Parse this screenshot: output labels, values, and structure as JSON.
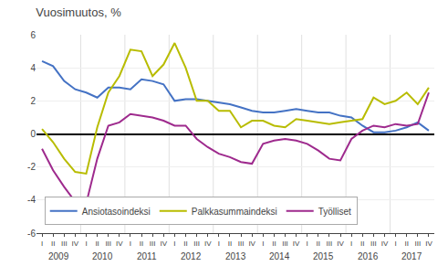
{
  "chart_data": {
    "type": "line",
    "title": "Vuosimuutos, %",
    "categories": [
      "I",
      "II",
      "III",
      "IV",
      "I",
      "II",
      "III",
      "IV",
      "I",
      "II",
      "III",
      "IV",
      "I",
      "II",
      "III",
      "IV",
      "I",
      "II",
      "III",
      "IV",
      "I",
      "II",
      "III",
      "IV",
      "I",
      "II",
      "III",
      "IV",
      "I",
      "II",
      "III",
      "IV",
      "I",
      "II",
      "III",
      "IV"
    ],
    "annotations": [
      "2009",
      "2010",
      "2011",
      "2012",
      "2013",
      "2014",
      "2015",
      "2016",
      "2017"
    ],
    "series": [
      {
        "name": "Ansiotasoindeksi",
        "color": "#4472c4",
        "values": [
          4.4,
          4.1,
          3.2,
          2.7,
          2.5,
          2.2,
          2.8,
          2.8,
          2.7,
          3.3,
          3.2,
          3.0,
          2.0,
          2.1,
          2.1,
          2.0,
          1.9,
          1.8,
          1.6,
          1.4,
          1.3,
          1.3,
          1.4,
          1.5,
          1.4,
          1.3,
          1.3,
          1.1,
          1.0,
          0.5,
          0.1,
          0.1,
          0.2,
          0.4,
          0.7,
          0.2
        ]
      },
      {
        "name": "Palkkasummaindeksi",
        "color": "#b8bc00",
        "values": [
          0.3,
          -0.5,
          -1.5,
          -2.3,
          -2.4,
          0.4,
          2.5,
          3.5,
          5.1,
          5.0,
          3.5,
          4.2,
          5.5,
          4.0,
          2.0,
          2.0,
          1.4,
          1.4,
          0.4,
          0.8,
          0.8,
          0.5,
          0.4,
          0.9,
          0.8,
          0.7,
          0.6,
          0.7,
          0.8,
          0.9,
          2.2,
          1.8,
          2.0,
          2.5,
          1.8,
          2.8
        ]
      },
      {
        "name": "Työlliset",
        "color": "#9e2a8d",
        "values": [
          -0.9,
          -2.2,
          -3.2,
          -4.1,
          -4.2,
          -1.5,
          0.5,
          0.7,
          1.2,
          1.1,
          1.0,
          0.8,
          0.5,
          0.5,
          -0.3,
          -0.8,
          -1.2,
          -1.4,
          -1.7,
          -1.8,
          -0.6,
          -0.4,
          -0.3,
          -0.4,
          -0.6,
          -1.0,
          -1.5,
          -1.6,
          -0.3,
          0.2,
          0.5,
          0.4,
          0.6,
          0.5,
          0.6,
          2.5
        ]
      }
    ],
    "ylim": [
      -6,
      6
    ],
    "yticks": [
      -6,
      -4,
      -2,
      0,
      2,
      4,
      6
    ],
    "grid": true,
    "legend": "lower left"
  }
}
